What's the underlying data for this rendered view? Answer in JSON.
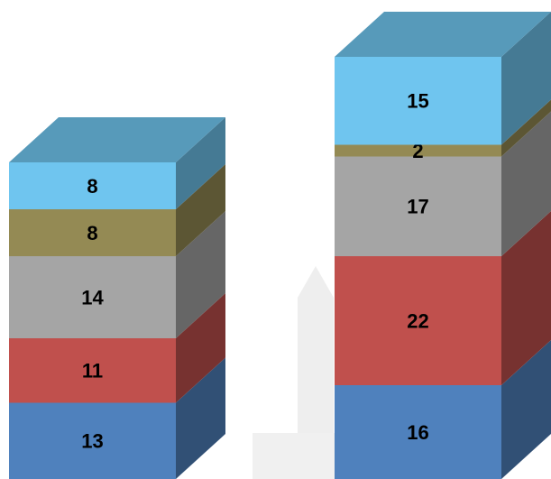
{
  "chart_data": {
    "type": "bar3d",
    "stacked": true,
    "categories": [
      null,
      null
    ],
    "series": [
      {
        "color": "#4f81bd",
        "values": [
          13,
          16
        ]
      },
      {
        "color": "#c0504d",
        "values": [
          11,
          22
        ]
      },
      {
        "color": "#a5a5a5",
        "values": [
          14,
          17
        ]
      },
      {
        "color": "#948a54",
        "values": [
          8,
          2
        ]
      },
      {
        "color": "#6fc5ef",
        "values": [
          8,
          15
        ]
      }
    ]
  }
}
